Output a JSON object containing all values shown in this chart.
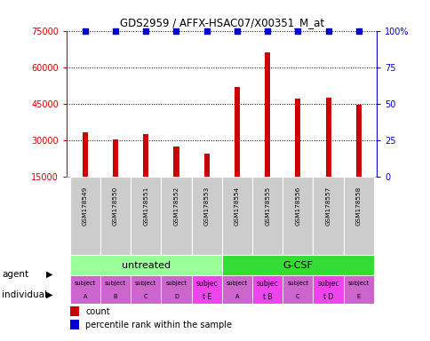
{
  "title": "GDS2959 / AFFX-HSAC07/X00351_M_at",
  "samples": [
    "GSM178549",
    "GSM178550",
    "GSM178551",
    "GSM178552",
    "GSM178553",
    "GSM178554",
    "GSM178555",
    "GSM178556",
    "GSM178557",
    "GSM178558"
  ],
  "counts": [
    33500,
    30500,
    32500,
    27500,
    24500,
    52000,
    66000,
    47000,
    47500,
    44500
  ],
  "percentile_ranks": [
    100,
    100,
    100,
    100,
    100,
    100,
    100,
    100,
    100,
    100
  ],
  "bar_color": "#cc0000",
  "dot_color": "#0000cc",
  "ylim_left": [
    15000,
    75000
  ],
  "yticks_left": [
    15000,
    30000,
    45000,
    60000,
    75000
  ],
  "ylim_right": [
    0,
    100
  ],
  "yticks_right": [
    0,
    25,
    50,
    75,
    100
  ],
  "agent_labels": [
    "untreated",
    "G-CSF"
  ],
  "agent_colors": [
    "#99ff99",
    "#33dd33"
  ],
  "indiv_top": [
    "subject",
    "subject",
    "subject",
    "subject",
    "subjec",
    "subject",
    "subjec",
    "subject",
    "subjec",
    "subject"
  ],
  "indiv_bot": [
    "A",
    "B",
    "C",
    "D",
    "t E",
    "A",
    "t B",
    "C",
    "t D",
    "E"
  ],
  "indiv_bold": [
    4,
    6,
    8
  ],
  "indiv_color_normal": "#dd88dd",
  "indiv_color_bold": "#ee44ee",
  "indiv_all_color": "#cc55cc",
  "sample_area_color": "#cccccc",
  "bar_color_left": "#cc0000",
  "dot_color_right": "#0000cc",
  "figsize": [
    4.85,
    3.84
  ],
  "dpi": 100
}
